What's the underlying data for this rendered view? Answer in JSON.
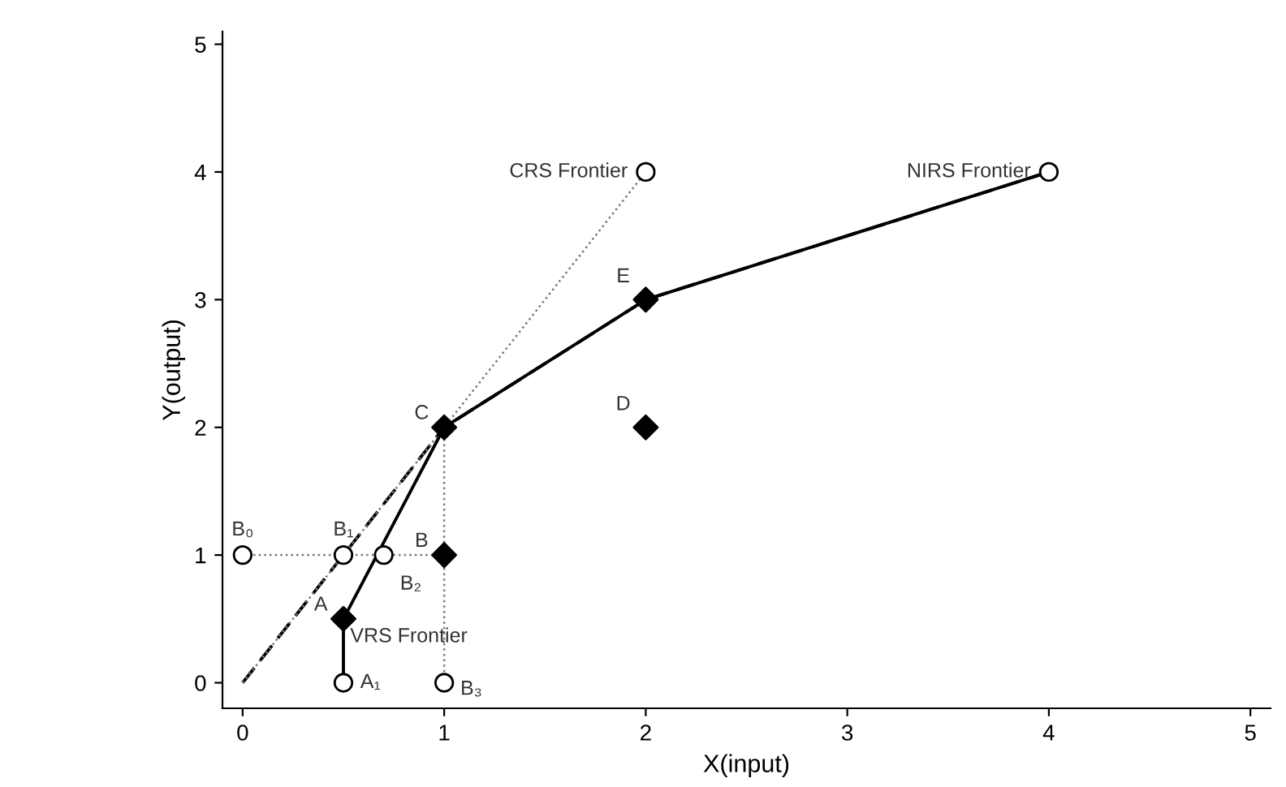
{
  "chart_data": {
    "type": "line",
    "xlabel": "X(input)",
    "ylabel": "Y(output)",
    "xlim": [
      -0.1,
      5.1
    ],
    "ylim": [
      -0.2,
      5.1
    ],
    "xticks": [
      0,
      1,
      2,
      3,
      4,
      5
    ],
    "yticks": [
      0,
      1,
      2,
      3,
      4,
      5
    ],
    "grid": false,
    "legend": false,
    "series": [
      {
        "color": "#000000",
        "line_style": "solid",
        "x": [
          0.5,
          0.5,
          1,
          2,
          4
        ],
        "values": [
          0,
          0.5,
          2,
          3,
          4
        ]
      },
      {
        "color": "#000000",
        "line_style": "dashed",
        "x": [
          0,
          1,
          2,
          4
        ],
        "values": [
          0,
          2,
          3,
          4
        ]
      },
      {
        "type": "line",
        "color": "#777777",
        "line_style": "dotted",
        "x": [
          0,
          2
        ],
        "values": [
          0,
          4
        ]
      },
      {
        "type": "line",
        "color": "#777777",
        "line_style": "dotted",
        "x": [
          0,
          1
        ],
        "values": [
          1,
          1
        ]
      },
      {
        "type": "line",
        "color": "#777777",
        "line_style": "dotted",
        "x": [
          1,
          1
        ],
        "values": [
          0,
          2
        ]
      },
      {
        "type": "scatter",
        "color": "#000000",
        "marker": "diamond",
        "x": [
          0.5,
          1,
          1,
          2,
          2
        ],
        "values": [
          0.5,
          1,
          2,
          2,
          3
        ]
      },
      {
        "type": "scatter",
        "color": "#000000",
        "marker": "circle",
        "x": [
          0,
          0.5,
          0.7,
          0.5,
          1,
          2,
          4
        ],
        "values": [
          1,
          1,
          1,
          0,
          0,
          4,
          4
        ]
      }
    ],
    "annotations": [
      {
        "text": "A",
        "x": 0.5,
        "y": 0.5
      },
      {
        "text": "B",
        "x": 1,
        "y": 1
      },
      {
        "text": "C",
        "x": 1,
        "y": 2
      },
      {
        "text": "D",
        "x": 2,
        "y": 2
      },
      {
        "text": "E",
        "x": 2,
        "y": 3
      },
      {
        "text": "B₀",
        "x": 0,
        "y": 1
      },
      {
        "text": "B₁",
        "x": 0.5,
        "y": 1
      },
      {
        "text": "B₂",
        "x": 0.7,
        "y": 1
      },
      {
        "text": "A₁",
        "x": 0.5,
        "y": 0
      },
      {
        "text": "B₃",
        "x": 1,
        "y": 0
      },
      {
        "text": "CRS Frontier",
        "x": 2,
        "y": 4
      },
      {
        "text": "NIRS Frontier",
        "x": 4,
        "y": 4
      },
      {
        "text": "VRS Frontier",
        "x": 0.5,
        "y": 0.5
      }
    ]
  }
}
